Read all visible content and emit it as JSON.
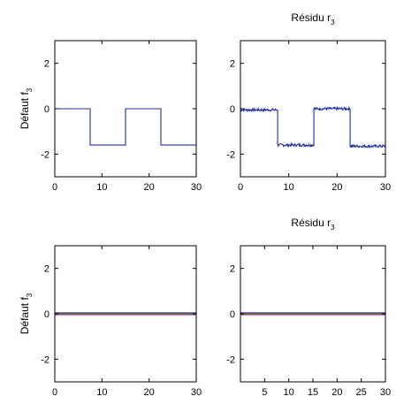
{
  "chart_data": [
    {
      "type": "line",
      "title": "",
      "ylabel": "Défaut f",
      "ylabel_sub": "3",
      "xlim": [
        0,
        30
      ],
      "ylim": [
        -3,
        3
      ],
      "xticks": [
        0,
        10,
        20,
        30
      ],
      "yticks": [
        2,
        0,
        -2
      ],
      "grid": false,
      "series": [
        {
          "color": "#1f2f9c",
          "x": [
            0,
            7.5,
            7.5,
            15,
            15,
            22.5,
            22.5,
            30,
            30
          ],
          "y": [
            0,
            0,
            -1.6,
            -1.6,
            0,
            0,
            -1.6,
            -1.6,
            0
          ]
        }
      ]
    },
    {
      "type": "line",
      "title": "Résidu r",
      "title_sub": "3",
      "ylabel": "",
      "xlim": [
        0,
        30
      ],
      "ylim": [
        -3,
        3
      ],
      "xticks": [
        0,
        10,
        20,
        30
      ],
      "yticks": [
        2,
        0,
        -2
      ],
      "grid": false,
      "series": [
        {
          "color": "#1f2f9c",
          "noise": 0.06,
          "x": [
            0,
            7.7,
            7.7,
            15.2,
            15.2,
            22.7,
            22.7,
            30
          ],
          "y": [
            -0.05,
            -0.05,
            -1.6,
            -1.6,
            0,
            0,
            -1.65,
            -1.65
          ]
        }
      ]
    },
    {
      "type": "line",
      "title": "",
      "ylabel": "Défaut f",
      "ylabel_sub": "3",
      "xlim": [
        0,
        30
      ],
      "ylim": [
        -3,
        3
      ],
      "xticks": [
        0,
        10,
        20,
        30
      ],
      "yticks": [
        2,
        0,
        -2
      ],
      "grid": false,
      "series": [
        {
          "color": "#1f2f9c",
          "x": [
            0,
            30
          ],
          "y": [
            0,
            0
          ]
        },
        {
          "color": "#c03030",
          "x": [
            0,
            30
          ],
          "y": [
            0,
            0
          ]
        },
        {
          "color": "#2a9a3a",
          "x": [
            0,
            30
          ],
          "y": [
            0,
            0
          ]
        },
        {
          "color": "#9040a0",
          "x": [
            0,
            30
          ],
          "y": [
            0,
            0
          ]
        }
      ]
    },
    {
      "type": "line",
      "title": "Résidu r",
      "title_sub": "3",
      "ylabel": "",
      "xlim": [
        0,
        30
      ],
      "ylim": [
        -3,
        3
      ],
      "xticks": [
        5,
        10,
        15,
        20,
        25,
        30
      ],
      "yticks": [
        2,
        0,
        -2
      ],
      "grid": false,
      "series": [
        {
          "color": "#1f2f9c",
          "x": [
            0,
            30
          ],
          "y": [
            0,
            0
          ]
        },
        {
          "color": "#c03030",
          "x": [
            0,
            30
          ],
          "y": [
            0,
            0
          ]
        },
        {
          "color": "#2a9a3a",
          "x": [
            0,
            30
          ],
          "y": [
            0,
            0
          ]
        },
        {
          "color": "#9040a0",
          "x": [
            0,
            30
          ],
          "y": [
            0,
            0
          ]
        }
      ]
    }
  ]
}
